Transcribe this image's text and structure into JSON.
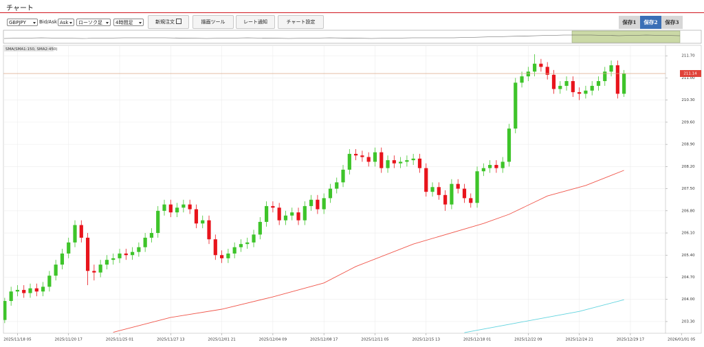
{
  "header": {
    "title": "チャート"
  },
  "toolbar": {
    "symbol": "GBPJPY",
    "price_type_label": "Bid/Ask",
    "price_type": "Ask",
    "chart_type": "ローソク足",
    "timeframe": "4時間足",
    "buttons": [
      "新規注文",
      "描画ツール",
      "レート通知",
      "チャート設定"
    ],
    "saves": [
      "保存1",
      "保存2",
      "保存3"
    ]
  },
  "chart_data": {
    "type": "candlestick",
    "indicator_label": "SMA(SMA1:150, SMA2:450)",
    "up_color": "#3ec42a",
    "down_color": "#e8141c",
    "open": [
      203.35,
      203.95,
      204.25,
      204.3,
      204.2,
      204.35,
      204.25,
      204.4,
      204.75,
      205.1,
      205.45,
      205.8,
      206.35,
      205.95,
      204.9,
      204.85,
      205.1,
      205.25,
      205.3,
      205.45,
      205.4,
      205.5,
      205.65,
      205.95,
      206.1,
      206.8,
      207.0,
      206.75,
      206.9,
      207.0,
      206.85,
      206.4,
      206.5,
      205.9,
      205.4,
      205.3,
      205.45,
      205.65,
      205.75,
      205.8,
      206.05,
      206.45,
      206.95,
      206.9,
      206.5,
      206.65,
      206.75,
      206.5,
      206.95,
      207.15,
      206.85,
      207.2,
      207.5,
      207.7,
      208.1,
      208.6,
      208.55,
      208.5,
      208.35,
      208.65,
      208.15,
      208.4,
      208.3,
      208.35,
      208.4,
      208.45,
      208.15,
      207.4,
      207.55,
      207.3,
      207.0,
      207.65,
      207.5,
      207.2,
      207.05,
      208.05,
      208.15,
      208.25,
      208.15,
      208.35,
      209.4,
      210.85,
      211.05,
      211.2,
      211.45,
      211.35,
      211.1,
      210.65,
      210.75,
      210.9,
      210.55,
      210.5,
      210.6,
      210.75,
      210.9,
      211.2,
      211.4,
      210.5
    ],
    "high": [
      204.05,
      204.4,
      204.45,
      204.45,
      204.5,
      204.5,
      204.55,
      204.9,
      205.25,
      205.6,
      205.95,
      206.5,
      206.5,
      206.1,
      205.1,
      205.25,
      205.4,
      205.45,
      205.6,
      205.6,
      205.65,
      205.8,
      206.1,
      206.25,
      206.95,
      207.15,
      207.15,
      207.05,
      207.15,
      207.15,
      207.0,
      206.65,
      206.65,
      206.05,
      205.55,
      205.6,
      205.8,
      205.9,
      205.95,
      206.2,
      206.6,
      207.1,
      207.1,
      207.05,
      206.8,
      206.9,
      206.9,
      207.1,
      207.3,
      207.3,
      207.35,
      207.65,
      207.85,
      208.25,
      208.75,
      208.75,
      208.7,
      208.65,
      208.8,
      208.8,
      208.55,
      208.55,
      208.5,
      208.55,
      208.6,
      208.6,
      208.3,
      207.7,
      207.7,
      207.45,
      207.8,
      207.8,
      207.65,
      207.35,
      208.2,
      208.3,
      208.4,
      208.4,
      208.5,
      209.55,
      211.0,
      211.2,
      211.35,
      211.75,
      211.6,
      211.5,
      211.25,
      210.9,
      211.05,
      211.05,
      210.7,
      210.75,
      210.9,
      211.05,
      211.35,
      211.55,
      211.55,
      211.25
    ],
    "low": [
      203.25,
      203.8,
      204.1,
      204.05,
      204.05,
      204.1,
      204.1,
      204.25,
      204.6,
      204.95,
      205.3,
      205.65,
      205.8,
      204.45,
      204.6,
      204.7,
      204.95,
      205.1,
      205.15,
      205.25,
      205.25,
      205.35,
      205.5,
      205.8,
      205.95,
      206.65,
      206.6,
      206.6,
      206.75,
      206.7,
      206.25,
      206.25,
      205.75,
      205.25,
      205.15,
      205.15,
      205.3,
      205.5,
      205.6,
      205.65,
      205.9,
      206.3,
      206.75,
      206.35,
      206.35,
      206.5,
      206.35,
      206.35,
      206.8,
      206.7,
      206.7,
      207.05,
      207.35,
      207.55,
      207.95,
      208.4,
      208.35,
      208.2,
      208.2,
      208.0,
      208.0,
      208.15,
      208.15,
      208.2,
      208.25,
      208.0,
      207.25,
      207.25,
      207.15,
      206.8,
      206.85,
      207.35,
      207.05,
      206.9,
      206.9,
      207.9,
      208.0,
      208.0,
      208.0,
      208.2,
      209.25,
      210.7,
      210.9,
      211.05,
      211.2,
      210.95,
      210.5,
      210.5,
      210.6,
      210.4,
      210.3,
      210.35,
      210.45,
      210.6,
      210.75,
      211.05,
      210.35,
      210.4
    ],
    "close": [
      203.95,
      204.25,
      204.3,
      204.2,
      204.35,
      204.25,
      204.4,
      204.75,
      205.1,
      205.45,
      205.8,
      206.35,
      205.95,
      204.9,
      204.85,
      205.1,
      205.25,
      205.3,
      205.45,
      205.4,
      205.5,
      205.65,
      205.95,
      206.1,
      206.8,
      207.0,
      206.75,
      206.9,
      207.0,
      206.85,
      206.4,
      206.5,
      205.9,
      205.4,
      205.3,
      205.45,
      205.65,
      205.75,
      205.8,
      206.05,
      206.45,
      206.95,
      206.9,
      206.5,
      206.65,
      206.75,
      206.5,
      206.95,
      207.15,
      206.85,
      207.2,
      207.5,
      207.7,
      208.1,
      208.6,
      208.55,
      208.5,
      208.35,
      208.65,
      208.15,
      208.4,
      208.3,
      208.35,
      208.4,
      208.45,
      208.15,
      207.4,
      207.55,
      207.3,
      207.0,
      207.65,
      207.5,
      207.2,
      207.05,
      208.05,
      208.15,
      208.25,
      208.15,
      208.35,
      209.4,
      210.85,
      211.05,
      211.2,
      211.45,
      211.35,
      211.1,
      210.65,
      210.75,
      210.9,
      210.55,
      210.5,
      210.6,
      210.75,
      210.9,
      211.2,
      211.4,
      210.5,
      211.14
    ],
    "series": [
      {
        "color": "#f0554a",
        "x": [
          17,
          26,
          34,
          42,
          50,
          55,
          64,
          75,
          79,
          85,
          91,
          97
        ],
        "values": [
          202.96,
          203.43,
          203.69,
          204.08,
          204.52,
          205.04,
          205.75,
          206.4,
          206.69,
          207.27,
          207.6,
          208.08
        ]
      },
      {
        "color": "#5fd3de",
        "x": [
          72,
          80,
          90,
          97
        ],
        "values": [
          202.95,
          203.25,
          203.62,
          203.99
        ]
      }
    ],
    "last_price": 211.14,
    "last_price_color": "#e0433a",
    "xlim": [
      -0.2,
      103.5
    ],
    "xticks": [
      {
        "value": 2,
        "label": "2025/11/18 05"
      },
      {
        "value": 10,
        "label": "2025/11/20 17"
      },
      {
        "value": 18,
        "label": "2025/11/25 01"
      },
      {
        "value": 26,
        "label": "2025/11/27 13"
      },
      {
        "value": 34,
        "label": "2025/12/01 21"
      },
      {
        "value": 42,
        "label": "2025/12/04 09"
      },
      {
        "value": 50,
        "label": "2025/12/08 17"
      },
      {
        "value": 58,
        "label": "2025/12/11 05"
      },
      {
        "value": 66,
        "label": "2025/12/15 13"
      },
      {
        "value": 74,
        "label": "2025/12/18 01"
      },
      {
        "value": 82,
        "label": "2025/12/22 09"
      },
      {
        "value": 90,
        "label": "2025/12/24 21"
      },
      {
        "value": 98,
        "label": "2025/12/29 17"
      },
      {
        "value": 106,
        "label": "2026/01/01 05"
      }
    ],
    "ylim": [
      202.93,
      212.03
    ],
    "yticks": [
      {
        "value": 203.3,
        "label": "203.30"
      },
      {
        "value": 204,
        "label": "204.00"
      },
      {
        "value": 204.7,
        "label": "204.70"
      },
      {
        "value": 205.4,
        "label": "205.40"
      },
      {
        "value": 206.1,
        "label": "206.10"
      },
      {
        "value": 206.8,
        "label": "206.80"
      },
      {
        "value": 207.5,
        "label": "207.50"
      },
      {
        "value": 208.2,
        "label": "208.20"
      },
      {
        "value": 208.9,
        "label": "208.90"
      },
      {
        "value": 209.6,
        "label": "209.60"
      },
      {
        "value": 210.3,
        "label": "210.30"
      },
      {
        "value": 211,
        "label": "211.00"
      },
      {
        "value": 211.7,
        "label": "211.70"
      }
    ],
    "grid": true
  }
}
